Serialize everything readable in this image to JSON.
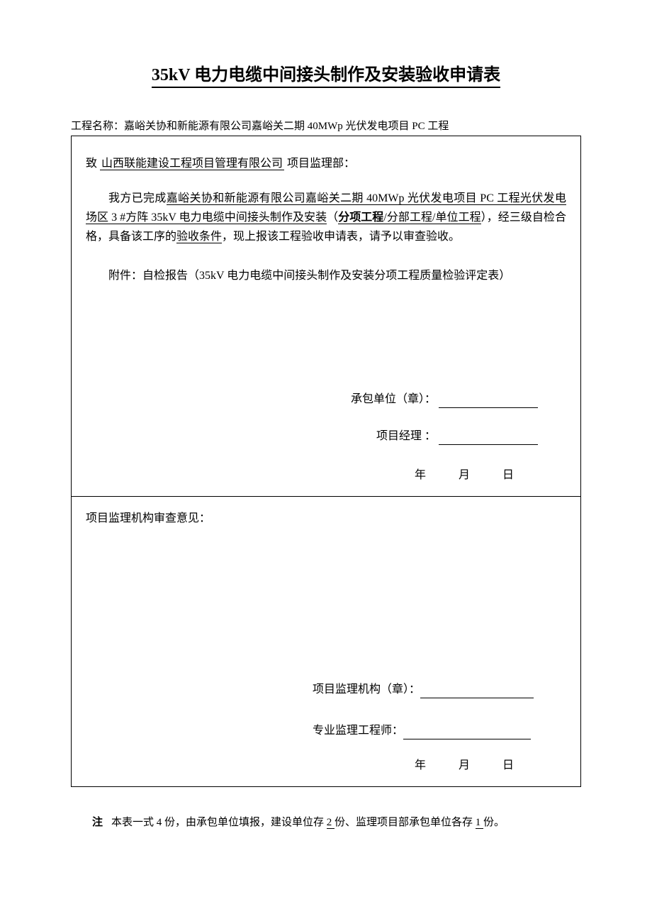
{
  "title": "35kV 电力电缆中间接头制作及安装验收申请表",
  "project_name_label": "工程名称：",
  "project_name_value": "嘉峪关协和新能源有限公司嘉峪关二期 40MWp 光伏发电项目 PC 工程",
  "addressee_pre": "致 ",
  "addressee_company": "山西联能建设工程项目管理有限公司",
  "addressee_post": " 项目监理部：",
  "body_pre": "我方已完成",
  "body_project_ul": "嘉峪关协和新能源有限公司嘉峪关二期 40MWp 光伏发电项目 PC 工程光伏发电场区  3 #方阵 35kV 电力电缆中间接头制作及安装",
  "body_paren_open": "（",
  "scope_bold": "分项工程",
  "scope_sep1": "/",
  "scope2": "分部工程",
  "scope_sep2": "/",
  "scope3": "单位工程",
  "body_paren_close": "）",
  "body_mid": "，经三级自检合格，具备该工序的",
  "body_cond_ul": "验收条件",
  "body_tail": "，现上报该工程验收申请表，请予以审查验收。",
  "attachment_label": "附件：",
  "attachment_text": "自检报告（35kV 电力电缆中间接头制作及安装分项工程质量检验评定表）",
  "sig_contractor_label": "承包单位（章）：",
  "sig_pm_label": "项目经理 ：",
  "date_year": "年",
  "date_month": "月",
  "date_day": "日",
  "opinion_label": "项目监理机构审查意见：",
  "sig_supervisor_org_label": "项目监理机构（章）：",
  "sig_engineer_label": "专业监理工程师：",
  "footnote_label": "注",
  "footnote_pre": "本表一式 4 份，由承包单位填报，建设单位存 ",
  "footnote_num1": "2 ",
  "footnote_mid": "份、监理项目部承包单位各存 ",
  "footnote_num2": "1 ",
  "footnote_tail": "份。",
  "colors": {
    "text": "#000000",
    "background": "#ffffff",
    "border": "#000000"
  },
  "typography": {
    "title_fontsize": 24,
    "body_fontsize": 16,
    "small_fontsize": 15,
    "font_family": "SimSun"
  }
}
